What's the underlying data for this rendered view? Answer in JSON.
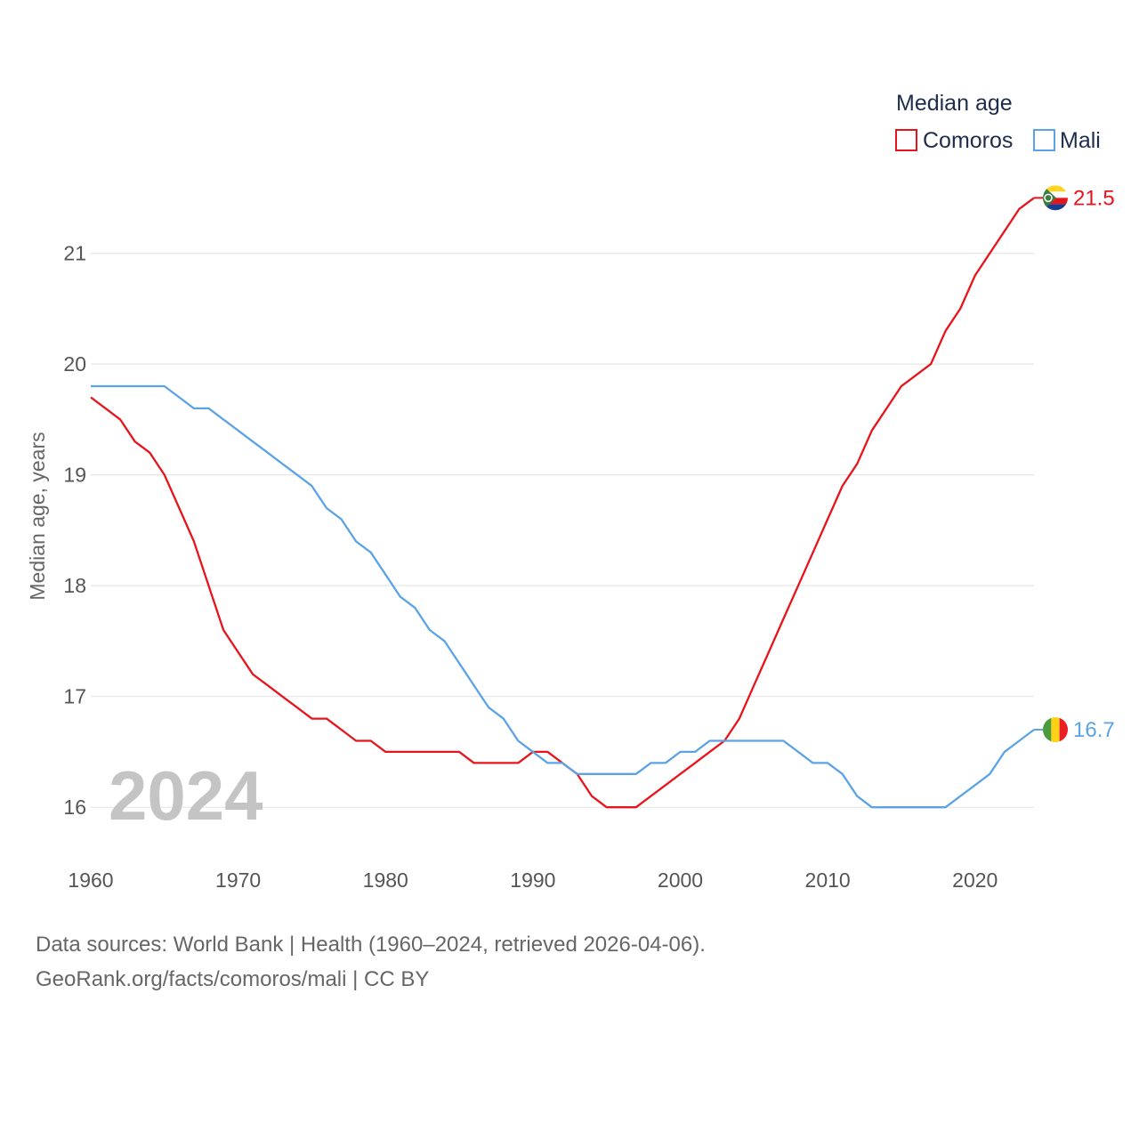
{
  "chart_data": {
    "type": "line",
    "title": "",
    "legend_title": "Median age",
    "legend_position": "top-right",
    "xlabel": "",
    "ylabel": "Median age, years",
    "xlim": [
      1960,
      2024
    ],
    "ylim": [
      15.6,
      21.8
    ],
    "x_ticks": [
      1960,
      1970,
      1980,
      1990,
      2000,
      2010,
      2020
    ],
    "y_ticks": [
      16,
      17,
      18,
      19,
      20,
      21
    ],
    "grid": true,
    "year_label": "2024",
    "x": [
      1960,
      1961,
      1962,
      1963,
      1964,
      1965,
      1966,
      1967,
      1968,
      1969,
      1970,
      1971,
      1972,
      1973,
      1974,
      1975,
      1976,
      1977,
      1978,
      1979,
      1980,
      1981,
      1982,
      1983,
      1984,
      1985,
      1986,
      1987,
      1988,
      1989,
      1990,
      1991,
      1992,
      1993,
      1994,
      1995,
      1996,
      1997,
      1998,
      1999,
      2000,
      2001,
      2002,
      2003,
      2004,
      2005,
      2006,
      2007,
      2008,
      2009,
      2010,
      2011,
      2012,
      2013,
      2014,
      2015,
      2016,
      2017,
      2018,
      2019,
      2020,
      2021,
      2022,
      2023,
      2024
    ],
    "series": [
      {
        "name": "Comoros",
        "color": "#e8141c",
        "end_label": "21.5",
        "flag_icon": "comoros-flag-icon",
        "values": [
          19.7,
          19.6,
          19.5,
          19.3,
          19.2,
          19.0,
          18.7,
          18.4,
          18.0,
          17.6,
          17.4,
          17.2,
          17.1,
          17.0,
          16.9,
          16.8,
          16.8,
          16.7,
          16.6,
          16.6,
          16.5,
          16.5,
          16.5,
          16.5,
          16.5,
          16.5,
          16.4,
          16.4,
          16.4,
          16.4,
          16.5,
          16.5,
          16.4,
          16.3,
          16.1,
          16.0,
          16.0,
          16.0,
          16.1,
          16.2,
          16.3,
          16.4,
          16.5,
          16.6,
          16.8,
          17.1,
          17.4,
          17.7,
          18.0,
          18.3,
          18.6,
          18.9,
          19.1,
          19.4,
          19.6,
          19.8,
          19.9,
          20.0,
          20.3,
          20.5,
          20.8,
          21.0,
          21.2,
          21.4,
          21.5
        ]
      },
      {
        "name": "Mali",
        "color": "#5ba3e6",
        "end_label": "16.7",
        "flag_icon": "mali-flag-icon",
        "values": [
          19.8,
          19.8,
          19.8,
          19.8,
          19.8,
          19.8,
          19.7,
          19.6,
          19.6,
          19.5,
          19.4,
          19.3,
          19.2,
          19.1,
          19.0,
          18.9,
          18.7,
          18.6,
          18.4,
          18.3,
          18.1,
          17.9,
          17.8,
          17.6,
          17.5,
          17.3,
          17.1,
          16.9,
          16.8,
          16.6,
          16.5,
          16.4,
          16.4,
          16.3,
          16.3,
          16.3,
          16.3,
          16.3,
          16.4,
          16.4,
          16.5,
          16.5,
          16.6,
          16.6,
          16.6,
          16.6,
          16.6,
          16.6,
          16.5,
          16.4,
          16.4,
          16.3,
          16.1,
          16.0,
          16.0,
          16.0,
          16.0,
          16.0,
          16.0,
          16.1,
          16.2,
          16.3,
          16.5,
          16.6,
          16.7
        ]
      }
    ]
  },
  "footer": {
    "line1": "Data sources: World Bank | Health (1960–2024, retrieved 2026-04-06).",
    "line2": "GeoRank.org/facts/comoros/mali | CC BY"
  }
}
